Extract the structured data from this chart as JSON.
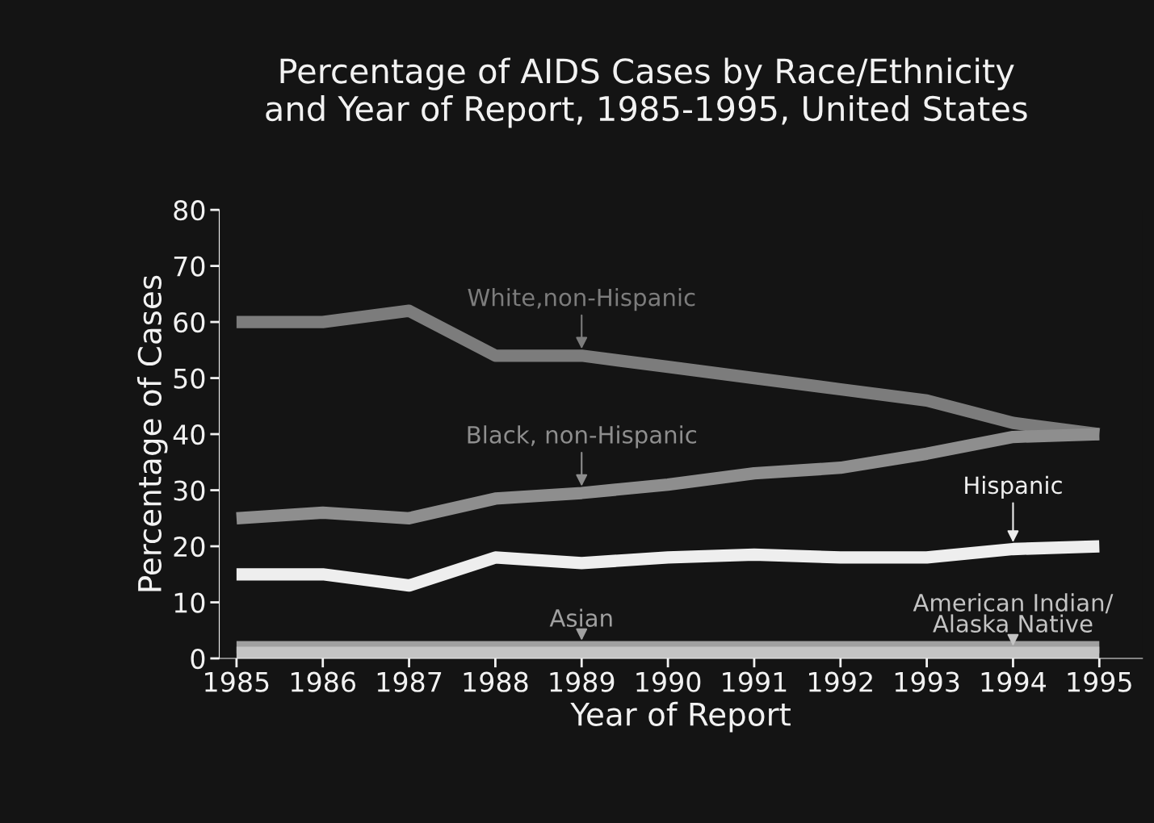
{
  "chart_data": {
    "type": "line",
    "title": "Percentage of AIDS Cases by Race/Ethnicity\nand Year of Report, 1985-1995, United States",
    "xlabel": "Year of Report",
    "ylabel": "Percentage of Cases",
    "x": [
      1985,
      1986,
      1987,
      1988,
      1989,
      1990,
      1991,
      1992,
      1993,
      1994,
      1995
    ],
    "series": [
      {
        "name": "White,non-Hispanic",
        "color": "#7c7c7c",
        "values": [
          60,
          60,
          62,
          54,
          54,
          52,
          50,
          48,
          46,
          42,
          40
        ]
      },
      {
        "name": "Black, non-Hispanic",
        "color": "#8e8e8e",
        "values": [
          25,
          26,
          25,
          28.5,
          29.5,
          31,
          33,
          34,
          36.5,
          39.5,
          40
        ]
      },
      {
        "name": "Hispanic",
        "color": "#eeeeee",
        "values": [
          15,
          15,
          13,
          18,
          17,
          18,
          18.5,
          18,
          18,
          19.5,
          20
        ]
      },
      {
        "name": "Asian",
        "color": "#a0a0a0",
        "values": [
          2,
          2,
          2,
          2,
          2,
          2,
          2,
          2,
          2,
          2,
          2
        ]
      },
      {
        "name": "American Indian/\nAlaska Native",
        "color": "#c4c4c4",
        "values": [
          1,
          1,
          1,
          1,
          1,
          1,
          1,
          1,
          1,
          1,
          1
        ]
      }
    ],
    "xlim": [
      1984.8,
      1995.5
    ],
    "ylim": [
      0,
      80
    ],
    "xticks": [
      1985,
      1986,
      1987,
      1988,
      1989,
      1990,
      1991,
      1992,
      1993,
      1994,
      1995
    ],
    "yticks": [
      0,
      10,
      20,
      30,
      40,
      50,
      60,
      70,
      80
    ],
    "grid": false,
    "legend": false,
    "marker": "none",
    "line_style": "solid"
  }
}
